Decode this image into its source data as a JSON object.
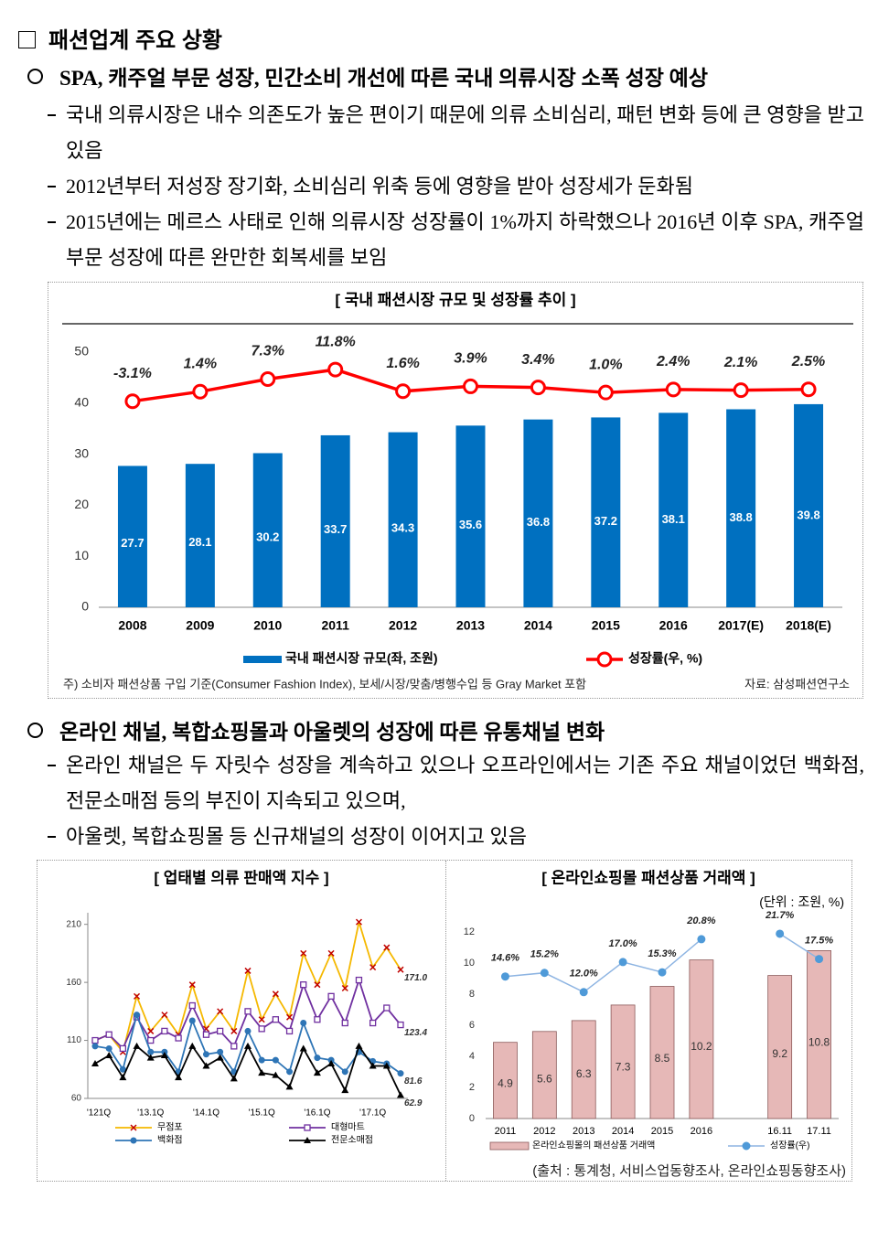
{
  "section_title": "패션업계 주요 상황",
  "bullets": [
    {
      "title": "SPA, 캐주얼 부문 성장, 민간소비 개선에 따른 국내 의류시장 소폭 성장 예상",
      "items": [
        "국내 의류시장은 내수 의존도가 높은 편이기 때문에 의류 소비심리, 패턴 변화 등에 큰 영향을 받고 있음",
        "2012년부터 저성장 장기화, 소비심리 위축 등에 영향을 받아 성장세가 둔화됨",
        "2015년에는 메르스 사태로 인해 의류시장 성장률이 1%까지 하락했으나 2016년 이후 SPA, 캐주얼 부문 성장에 따른 완만한 회복세를 보임"
      ]
    },
    {
      "title": "온라인 채널, 복합쇼핑몰과 아울렛의 성장에 따른 유통채널 변화",
      "items": [
        "온라인 채널은 두 자릿수 성장을 계속하고 있으나 오프라인에서는 기존 주요 채널이었던 백화점, 전문소매점 등의 부진이 지속되고 있으며,",
        "아울렛, 복합쇼핑몰 등 신규채널의 성장이 이어지고 있음"
      ]
    }
  ],
  "chart_data": [
    {
      "type": "combo",
      "title": "[ 국내 패션시장 규모 및 성장률 추이 ]",
      "categories": [
        "2008",
        "2009",
        "2010",
        "2011",
        "2012",
        "2013",
        "2014",
        "2015",
        "2016",
        "2017(E)",
        "2018(E)"
      ],
      "series": [
        {
          "name": "국내 패션시장 규모(좌, 조원)",
          "kind": "bar",
          "color": "#0070c0",
          "values": [
            27.7,
            28.1,
            30.2,
            33.7,
            34.3,
            35.6,
            36.8,
            37.2,
            38.1,
            38.8,
            39.8
          ]
        },
        {
          "name": "성장률(우, %)",
          "kind": "line",
          "axis": "y2",
          "color": "#ff0000",
          "marker": "circle",
          "values": [
            -3.1,
            1.4,
            7.3,
            11.8,
            1.6,
            3.9,
            3.4,
            1.0,
            2.4,
            2.1,
            2.5
          ],
          "value_labels": [
            "-3.1%",
            "1.4%",
            "7.3%",
            "11.8%",
            "1.6%",
            "3.9%",
            "3.4%",
            "1.0%",
            "2.4%",
            "2.1%",
            "2.5%"
          ]
        }
      ],
      "ylim": [
        0,
        50
      ],
      "yticks": [
        0,
        10,
        20,
        30,
        40,
        50
      ],
      "y2lim": [
        -100,
        20
      ],
      "grid": false,
      "note": "주) 소비자 패션상품 구입 기준(Consumer Fashion Index), 보세/시장/맞춤/병행수입 등 Gray Market 포함",
      "source": "자료: 삼성패션연구소"
    },
    {
      "type": "line",
      "title": "[ 업태별 의류 판매액 지수 ]",
      "categories": [
        "'121Q",
        null,
        null,
        null,
        "'13.1Q",
        null,
        null,
        null,
        "'14.1Q",
        null,
        null,
        null,
        "'15.1Q",
        null,
        null,
        null,
        "'16.1Q",
        null,
        null,
        null,
        "'17.1Q",
        null,
        null
      ],
      "series": [
        {
          "name": "무점포",
          "color": "#f5b800",
          "marker": "x",
          "marker_color": "#c00000",
          "values": [
            110,
            115,
            100,
            148,
            118,
            132,
            115,
            158,
            120,
            135,
            118,
            170,
            128,
            150,
            130,
            185,
            158,
            185,
            155,
            212,
            173,
            190,
            171
          ],
          "value_labels": [
            null,
            null,
            null,
            null,
            null,
            null,
            null,
            null,
            null,
            null,
            null,
            null,
            null,
            null,
            null,
            null,
            null,
            null,
            null,
            null,
            null,
            null,
            "171.0"
          ]
        },
        {
          "name": "대형마트",
          "color": "#7030a0",
          "marker": "square",
          "values": [
            110,
            115,
            103,
            130,
            110,
            118,
            112,
            140,
            115,
            118,
            105,
            135,
            120,
            128,
            118,
            158,
            128,
            148,
            125,
            162,
            125,
            138,
            123.4
          ],
          "value_labels": [
            null,
            null,
            null,
            null,
            null,
            null,
            null,
            null,
            null,
            null,
            null,
            null,
            null,
            null,
            null,
            null,
            null,
            null,
            null,
            null,
            null,
            null,
            "123.4"
          ]
        },
        {
          "name": "백화점",
          "color": "#2e75b6",
          "marker": "circle",
          "values": [
            105,
            103,
            85,
            132,
            100,
            100,
            83,
            127,
            98,
            100,
            83,
            118,
            93,
            93,
            83,
            125,
            95,
            93,
            83,
            100,
            92,
            90,
            81.6
          ],
          "value_labels": [
            null,
            null,
            null,
            null,
            null,
            null,
            null,
            null,
            null,
            null,
            null,
            null,
            null,
            null,
            null,
            null,
            null,
            null,
            null,
            null,
            null,
            null,
            "81.6"
          ]
        },
        {
          "name": "전문소매점",
          "color": "#000000",
          "marker": "triangle",
          "values": [
            90,
            97,
            78,
            105,
            95,
            97,
            78,
            105,
            88,
            95,
            77,
            105,
            82,
            80,
            70,
            103,
            82,
            90,
            67,
            105,
            88,
            88,
            62.9
          ],
          "value_labels": [
            null,
            null,
            null,
            null,
            null,
            null,
            null,
            null,
            null,
            null,
            null,
            null,
            null,
            null,
            null,
            null,
            null,
            null,
            null,
            null,
            null,
            null,
            "62.9"
          ]
        }
      ],
      "ylim": [
        60,
        220
      ],
      "yticks": [
        60,
        110,
        160,
        210
      ],
      "grid": false
    },
    {
      "type": "combo",
      "title": "[ 온라인쇼핑몰 패션상품 거래액 ]",
      "unit": "(단위 : 조원, %)",
      "categories": [
        "2011",
        "2012",
        "2013",
        "2014",
        "2015",
        "2016",
        null,
        "16.11",
        "17.11"
      ],
      "series": [
        {
          "name": "온라인쇼핑몰의 패션상품 거래액",
          "kind": "bar",
          "color": "#e6b8b7",
          "values": [
            4.9,
            5.6,
            6.3,
            7.3,
            8.5,
            10.2,
            null,
            9.2,
            10.8
          ]
        },
        {
          "name": "성장률(우)",
          "kind": "line",
          "axis": "y2",
          "color": "#8db4e2",
          "marker": "circle",
          "marker_color": "#4f9ad8",
          "values": [
            14.6,
            15.2,
            12.0,
            17.0,
            15.3,
            20.8,
            null,
            21.7,
            17.5
          ],
          "value_labels": [
            "14.6%",
            "15.2%",
            "12.0%",
            "17.0%",
            "15.3%",
            "20.8%",
            null,
            "21.7%",
            "17.5%"
          ]
        }
      ],
      "ylim": [
        0,
        12
      ],
      "yticks": [
        0,
        2,
        4,
        6,
        8,
        10,
        12
      ],
      "y2lim": [
        -9,
        22
      ],
      "grid": false,
      "source": "(출처 : 통계청, 서비스업동향조사, 온라인쇼핑동향조사)"
    }
  ]
}
